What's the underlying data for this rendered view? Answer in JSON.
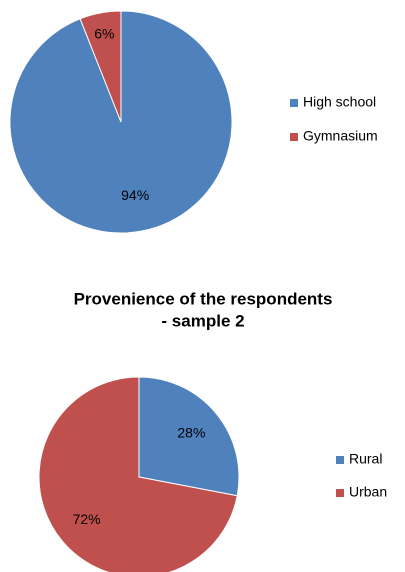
{
  "chart_data": [
    {
      "type": "pie",
      "categories": [
        "High school",
        "Gymnasium"
      ],
      "values": [
        94,
        6
      ],
      "value_labels": [
        "94%",
        "6%"
      ],
      "colors": [
        "#4f81bd",
        "#c0504d"
      ],
      "legend": "right"
    },
    {
      "type": "pie",
      "title": [
        "Provenience of the respondents",
        "- sample 2"
      ],
      "categories": [
        "Rural",
        "Urban"
      ],
      "values": [
        28,
        72
      ],
      "value_labels": [
        "28%",
        "72%"
      ],
      "colors": [
        "#4f81bd",
        "#c0504d"
      ],
      "legend": "right"
    }
  ]
}
